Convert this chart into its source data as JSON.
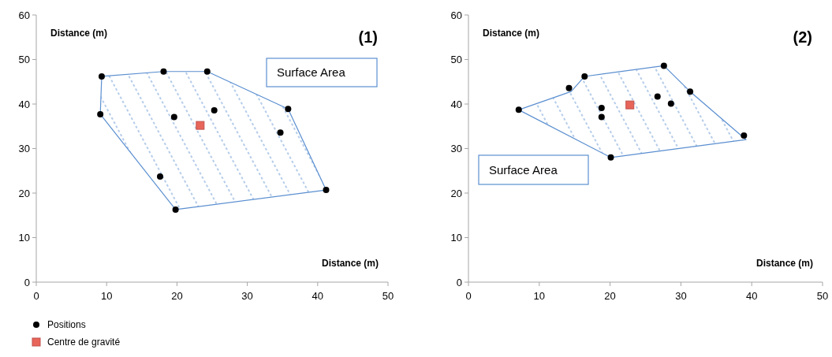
{
  "chart_data": [
    {
      "type": "scatter",
      "title": "(1)",
      "xlabel": "Distance (m)",
      "ylabel": "Distance (m)",
      "annotations": [
        "Surface Area"
      ],
      "xlim": [
        0,
        50
      ],
      "ylim": [
        0,
        60
      ],
      "xticks": [
        0,
        10,
        20,
        30,
        40,
        50
      ],
      "yticks": [
        0,
        10,
        20,
        30,
        40,
        50,
        60
      ],
      "grid": false,
      "legend": "bottom",
      "series": [
        {
          "type": "area",
          "color": "#5b8fd0",
          "marker": "none",
          "x": [
            9.3,
            18.1,
            24.3,
            35.8,
            41.2,
            19.8,
            9.1,
            9.3
          ],
          "values": [
            46.2,
            47.3,
            47.3,
            38.9,
            20.7,
            16.3,
            37.7,
            46.2
          ]
        },
        {
          "name": "Positions",
          "color": "#000000",
          "marker": "circle",
          "x": [
            9.3,
            18.1,
            24.3,
            35.8,
            41.2,
            19.8,
            9.1,
            19.6,
            25.3,
            34.7,
            17.6
          ],
          "values": [
            46.2,
            47.3,
            47.3,
            38.9,
            20.7,
            16.3,
            37.7,
            37.1,
            38.6,
            33.6,
            23.7
          ]
        },
        {
          "name": "Centre de  gravité",
          "color": "#e8655a",
          "marker": "square",
          "x": [
            23.3
          ],
          "values": [
            35.2
          ]
        }
      ]
    },
    {
      "type": "scatter",
      "title": "(2)",
      "xlabel": "Distance (m)",
      "ylabel": "Distance (m)",
      "annotations": [
        "Surface Area"
      ],
      "xlim": [
        0,
        50
      ],
      "ylim": [
        0,
        60
      ],
      "xticks": [
        0,
        10,
        20,
        30,
        40,
        50
      ],
      "yticks": [
        0,
        10,
        20,
        30,
        40,
        50,
        60
      ],
      "grid": false,
      "series": [
        {
          "type": "area",
          "color": "#5b8fd0",
          "marker": "none",
          "x": [
            7.1,
            14.5,
            16.4,
            27.6,
            31.3,
            39.2,
            20.1,
            7.1
          ],
          "values": [
            38.7,
            42.8,
            46.2,
            48.6,
            42.8,
            32.0,
            28.0,
            38.7
          ]
        },
        {
          "color": "#000000",
          "marker": "circle",
          "x": [
            7.1,
            14.2,
            16.4,
            27.6,
            31.3,
            38.9,
            20.1,
            18.8,
            18.8,
            26.7,
            28.6
          ],
          "values": [
            38.7,
            43.6,
            46.2,
            48.6,
            42.8,
            32.9,
            28.0,
            39.1,
            37.1,
            41.7,
            40.1
          ]
        },
        {
          "color": "#e8655a",
          "marker": "square",
          "x": [
            22.8
          ],
          "values": [
            39.8
          ]
        }
      ]
    }
  ]
}
